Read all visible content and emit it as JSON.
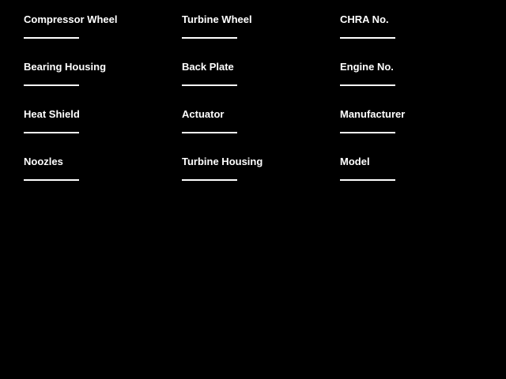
{
  "page": {
    "background_color": "#000000",
    "text_color": "#ffffff"
  },
  "form": {
    "fields": [
      {
        "label": "Compressor Wheel",
        "value": ""
      },
      {
        "label": "Turbine Wheel",
        "value": ""
      },
      {
        "label": "CHRA No.",
        "value": ""
      },
      {
        "label": "Bearing Housing",
        "value": ""
      },
      {
        "label": "Back Plate",
        "value": ""
      },
      {
        "label": "Engine No.",
        "value": ""
      },
      {
        "label": "Heat Shield",
        "value": ""
      },
      {
        "label": "Actuator",
        "value": ""
      },
      {
        "label": "Manufacturer",
        "value": ""
      },
      {
        "label": "Noozles",
        "value": ""
      },
      {
        "label": "Turbine Housing",
        "value": ""
      },
      {
        "label": "Model",
        "value": ""
      }
    ]
  }
}
